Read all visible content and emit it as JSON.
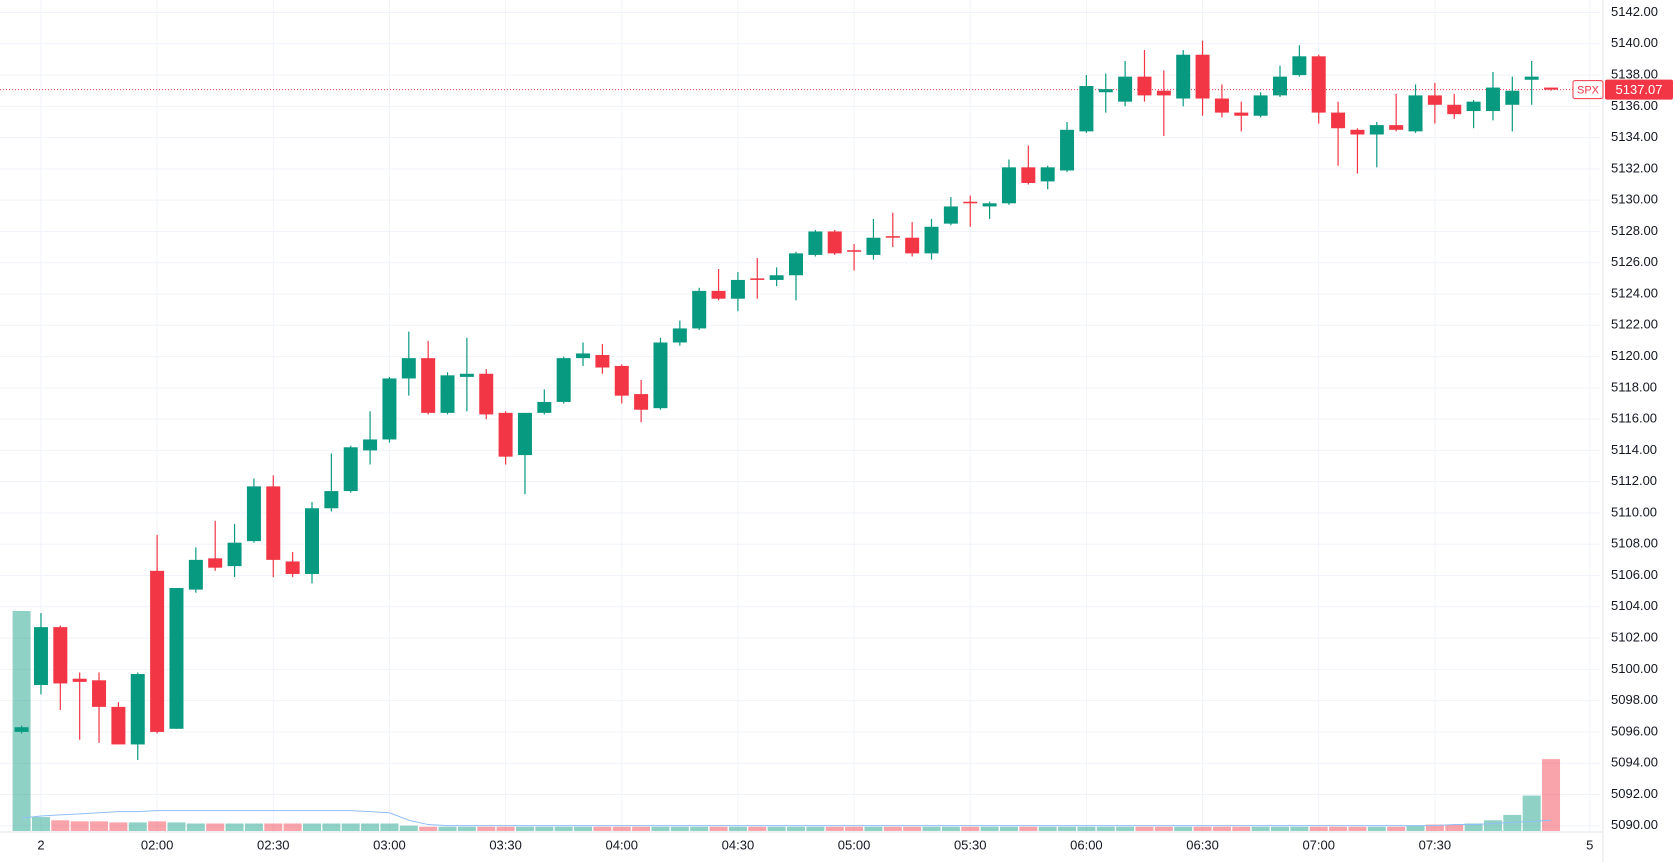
{
  "chart_data": {
    "type": "candlestick",
    "categories": [
      null,
      "2",
      null,
      null,
      null,
      null,
      null,
      "02:00",
      null,
      null,
      null,
      null,
      null,
      "02:30",
      null,
      null,
      null,
      null,
      null,
      "03:00",
      null,
      null,
      null,
      null,
      null,
      "03:30",
      null,
      null,
      null,
      null,
      null,
      "04:00",
      null,
      null,
      null,
      null,
      null,
      "04:30",
      null,
      null,
      null,
      null,
      null,
      "05:00",
      null,
      null,
      null,
      null,
      null,
      "05:30",
      null,
      null,
      null,
      null,
      null,
      "06:00",
      null,
      null,
      null,
      null,
      null,
      "06:30",
      null,
      null,
      null,
      null,
      null,
      "07:00",
      null,
      null,
      null,
      null,
      null,
      "07:30",
      null,
      null,
      null,
      null,
      null,
      null,
      null,
      "5"
    ],
    "open": [
      5096.0,
      5099.0,
      5102.7,
      5099.4,
      5099.3,
      5097.6,
      5095.2,
      5106.3,
      5096.2,
      5105.1,
      5107.1,
      5106.6,
      5108.2,
      5111.7,
      5106.9,
      5106.1,
      5110.3,
      5111.4,
      5114.0,
      5114.7,
      5118.6,
      5119.9,
      5116.4,
      5118.7,
      5118.9,
      5116.4,
      5113.7,
      5116.4,
      5117.1,
      5119.9,
      5120.1,
      5119.4,
      5117.6,
      5116.7,
      5120.9,
      5121.8,
      5124.2,
      5123.7,
      5125.0,
      5124.9,
      5125.2,
      5126.5,
      5128.0,
      5126.8,
      5126.5,
      5127.7,
      5127.6,
      5126.6,
      5128.5,
      5129.9,
      5129.6,
      5129.8,
      5132.1,
      5131.2,
      5131.9,
      5134.4,
      5136.9,
      5136.3,
      5137.9,
      5137.0,
      5136.5,
      5139.3,
      5136.5,
      5135.6,
      5135.4,
      5136.7,
      5138.0,
      5139.2,
      5135.6,
      5134.5,
      5134.2,
      5134.8,
      5134.4,
      5136.7,
      5136.1,
      5135.7,
      5135.7,
      5136.1,
      5137.7,
      5137.2,
      null,
      null
    ],
    "high": [
      5096.4,
      5103.6,
      5102.8,
      5099.8,
      5099.8,
      5097.9,
      5099.8,
      5108.6,
      5105.2,
      5107.8,
      5109.5,
      5109.3,
      5112.2,
      5112.4,
      5107.5,
      5110.7,
      5113.8,
      5114.3,
      5116.5,
      5118.7,
      5121.6,
      5121.0,
      5119.0,
      5121.2,
      5119.2,
      5116.5,
      5116.4,
      5117.9,
      5120.0,
      5120.9,
      5120.8,
      5119.5,
      5118.5,
      5121.2,
      5122.3,
      5124.4,
      5125.6,
      5125.4,
      5126.3,
      5125.7,
      5126.7,
      5128.1,
      5128.1,
      5127.2,
      5128.8,
      5129.2,
      5128.6,
      5128.8,
      5130.2,
      5130.3,
      5129.9,
      5132.6,
      5133.5,
      5132.2,
      5135.0,
      5138.0,
      5138.1,
      5138.9,
      5139.6,
      5138.3,
      5139.6,
      5140.2,
      5137.4,
      5136.3,
      5136.9,
      5138.6,
      5139.9,
      5139.3,
      5136.3,
      5134.6,
      5135.0,
      5136.8,
      5137.4,
      5137.5,
      5136.8,
      5136.4,
      5138.2,
      5137.9,
      5138.9,
      5137.2,
      null,
      null
    ],
    "low": [
      5095.9,
      5098.4,
      5097.4,
      5095.5,
      5095.3,
      5095.2,
      5094.2,
      5095.9,
      5096.2,
      5104.9,
      5106.3,
      5105.9,
      5108.1,
      5105.9,
      5105.9,
      5105.5,
      5110.1,
      5111.3,
      5113.1,
      5114.5,
      5117.5,
      5116.3,
      5116.3,
      5116.5,
      5116.0,
      5113.1,
      5111.2,
      5116.3,
      5117.0,
      5119.4,
      5118.9,
      5117.0,
      5115.8,
      5116.6,
      5120.7,
      5121.7,
      5123.6,
      5122.9,
      5123.7,
      5124.5,
      5123.6,
      5126.4,
      5126.5,
      5125.5,
      5126.2,
      5127.0,
      5126.4,
      5126.2,
      5128.4,
      5128.3,
      5128.8,
      5129.7,
      5131.0,
      5130.7,
      5131.8,
      5134.3,
      5135.6,
      5136.0,
      5136.3,
      5134.1,
      5136.0,
      5135.4,
      5135.3,
      5134.4,
      5135.3,
      5136.6,
      5137.9,
      5134.9,
      5132.2,
      5131.7,
      5132.1,
      5134.4,
      5134.3,
      5134.9,
      5135.2,
      5134.6,
      5135.1,
      5134.4,
      5136.1,
      5137.0,
      null,
      null
    ],
    "close": [
      5096.3,
      5102.7,
      5099.1,
      5099.2,
      5097.6,
      5095.2,
      5099.7,
      5096.0,
      5105.2,
      5107.0,
      5106.5,
      5108.1,
      5111.7,
      5107.0,
      5106.1,
      5110.3,
      5111.4,
      5114.2,
      5114.7,
      5118.6,
      5119.9,
      5116.4,
      5118.8,
      5118.9,
      5116.3,
      5113.6,
      5116.4,
      5117.1,
      5119.9,
      5120.2,
      5119.3,
      5117.5,
      5116.6,
      5120.9,
      5121.8,
      5124.2,
      5123.7,
      5124.9,
      5124.9,
      5125.2,
      5126.6,
      5128.0,
      5126.6,
      5126.7,
      5127.6,
      5127.6,
      5126.6,
      5128.3,
      5129.6,
      5129.8,
      5129.8,
      5132.1,
      5131.1,
      5132.1,
      5134.5,
      5137.3,
      5137.1,
      5137.9,
      5136.7,
      5136.7,
      5139.3,
      5136.5,
      5135.6,
      5135.4,
      5136.7,
      5137.9,
      5139.2,
      5135.6,
      5134.6,
      5134.2,
      5134.8,
      5134.5,
      5136.7,
      5136.1,
      5135.5,
      5136.3,
      5137.2,
      5137.0,
      5137.9,
      5137.07,
      null,
      null
    ],
    "volume": [
      205,
      13,
      10,
      9,
      9,
      8,
      8,
      9,
      8,
      7,
      7,
      7,
      7,
      7,
      7,
      7,
      7,
      7,
      7,
      7,
      5,
      4,
      4,
      4,
      4,
      4,
      4,
      4,
      4,
      4,
      4,
      4,
      4,
      4,
      4,
      4,
      4,
      4,
      4,
      4,
      4,
      4,
      4,
      4,
      4,
      4,
      4,
      4,
      4,
      4,
      4,
      4,
      4,
      4,
      4,
      4,
      4,
      4,
      4,
      4,
      4,
      4,
      4,
      4,
      4,
      4,
      4,
      4,
      4,
      4,
      4,
      4,
      5,
      6,
      6,
      7,
      10,
      15,
      33,
      67,
      null,
      null
    ],
    "volume_ma": [
      12,
      14,
      15,
      16,
      17,
      18,
      18,
      19,
      19,
      19,
      19,
      19,
      19,
      19,
      19,
      19,
      19,
      19,
      18,
      17,
      10,
      6,
      5,
      5,
      5,
      5,
      5,
      5,
      5,
      5,
      5,
      5,
      5,
      5,
      5,
      5,
      5,
      5,
      5,
      5,
      5,
      5,
      5,
      5,
      5,
      5,
      5,
      5,
      5,
      5,
      5,
      5,
      5,
      5,
      5,
      5,
      5,
      5,
      5,
      5,
      5,
      5,
      5,
      5,
      5,
      5,
      5,
      5,
      5,
      5,
      5,
      5,
      5,
      5,
      6,
      6,
      7,
      8,
      9,
      10,
      null,
      null
    ],
    "up_color": "#089981",
    "down_color": "#f23645",
    "ma_color": "#90bff9",
    "ylim": [
      5089.6,
      5142.8
    ],
    "yticks": [
      {
        "value": 5090,
        "label": "5090.00"
      },
      {
        "value": 5092,
        "label": "5092.00"
      },
      {
        "value": 5094,
        "label": "5094.00"
      },
      {
        "value": 5096,
        "label": "5096.00"
      },
      {
        "value": 5098,
        "label": "5098.00"
      },
      {
        "value": 5100,
        "label": "5100.00"
      },
      {
        "value": 5102,
        "label": "5102.00"
      },
      {
        "value": 5104,
        "label": "5104.00"
      },
      {
        "value": 5106,
        "label": "5106.00"
      },
      {
        "value": 5108,
        "label": "5108.00"
      },
      {
        "value": 5110,
        "label": "5110.00"
      },
      {
        "value": 5112,
        "label": "5112.00"
      },
      {
        "value": 5114,
        "label": "5114.00"
      },
      {
        "value": 5116,
        "label": "5116.00"
      },
      {
        "value": 5118,
        "label": "5118.00"
      },
      {
        "value": 5120,
        "label": "5120.00"
      },
      {
        "value": 5122,
        "label": "5122.00"
      },
      {
        "value": 5124,
        "label": "5124.00"
      },
      {
        "value": 5126,
        "label": "5126.00"
      },
      {
        "value": 5128,
        "label": "5128.00"
      },
      {
        "value": 5130,
        "label": "5130.00"
      },
      {
        "value": 5132,
        "label": "5132.00"
      },
      {
        "value": 5134,
        "label": "5134.00"
      },
      {
        "value": 5136,
        "label": "5136.00"
      },
      {
        "value": 5138,
        "label": "5138.00"
      },
      {
        "value": 5140,
        "label": "5140.00"
      },
      {
        "value": 5142,
        "label": "5142.00"
      }
    ],
    "grid": true,
    "last_price": {
      "symbol": "SPX",
      "value": 5137.07
    }
  }
}
